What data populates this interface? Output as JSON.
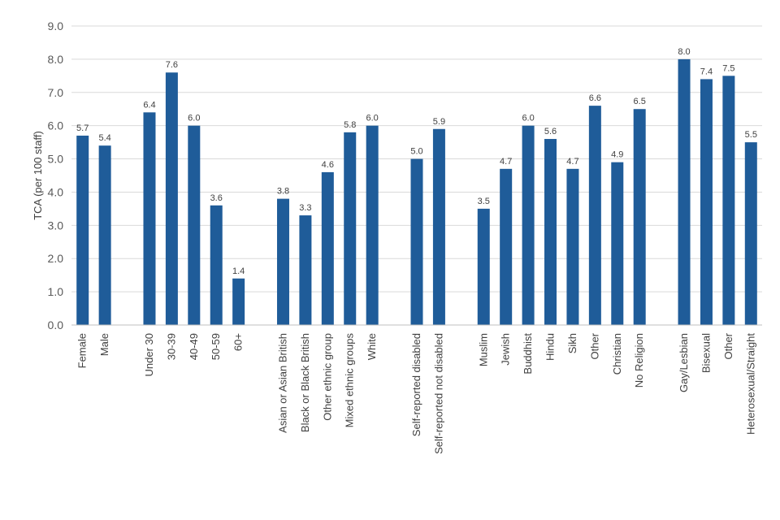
{
  "chart_data": {
    "type": "bar",
    "ylabel": "TCA (per 100 staff)",
    "xlabel": "",
    "ylim": [
      0,
      9
    ],
    "yticks": [
      "0.0",
      "1.0",
      "2.0",
      "3.0",
      "4.0",
      "5.0",
      "6.0",
      "7.0",
      "8.0",
      "9.0"
    ],
    "grid": "horizontal",
    "colors": {
      "bar": "#1F5C99",
      "grid": "#D9D9D9"
    },
    "categories": [
      "Female",
      "Male",
      "Under 30",
      "30-39",
      "40-49",
      "50-59",
      "60+",
      "Asian or Asian British",
      "Black or Black British",
      "Other ethnic group",
      "Mixed ethnic groups",
      "White",
      "Self-reported disabled",
      "Self-reported not disabled",
      "Muslim",
      "Jewish",
      "Buddhist",
      "Hindu",
      "Sikh",
      "Other",
      "Christian",
      "No Religion",
      "Gay/Lesbian",
      "Bisexual",
      "Other",
      "Heterosexual/Straight"
    ],
    "values": [
      5.7,
      5.4,
      6.4,
      7.6,
      6.0,
      3.6,
      1.4,
      3.8,
      3.3,
      4.6,
      5.8,
      6.0,
      5.0,
      5.9,
      3.5,
      4.7,
      6.0,
      5.6,
      4.7,
      6.6,
      4.9,
      6.5,
      8.0,
      7.4,
      7.5,
      5.5
    ],
    "data_labels": [
      "5.7",
      "5.4",
      "6.4",
      "7.6",
      "6.0",
      "3.6",
      "1.4",
      "3.8",
      "3.3",
      "4.6",
      "5.8",
      "6.0",
      "5.0",
      "5.9",
      "3.5",
      "4.7",
      "6.0",
      "5.6",
      "4.7",
      "6.6",
      "4.9",
      "6.5",
      "8.0",
      "7.4",
      "7.5",
      "5.5"
    ],
    "groups": [
      2,
      5,
      5,
      2,
      8,
      4
    ]
  }
}
